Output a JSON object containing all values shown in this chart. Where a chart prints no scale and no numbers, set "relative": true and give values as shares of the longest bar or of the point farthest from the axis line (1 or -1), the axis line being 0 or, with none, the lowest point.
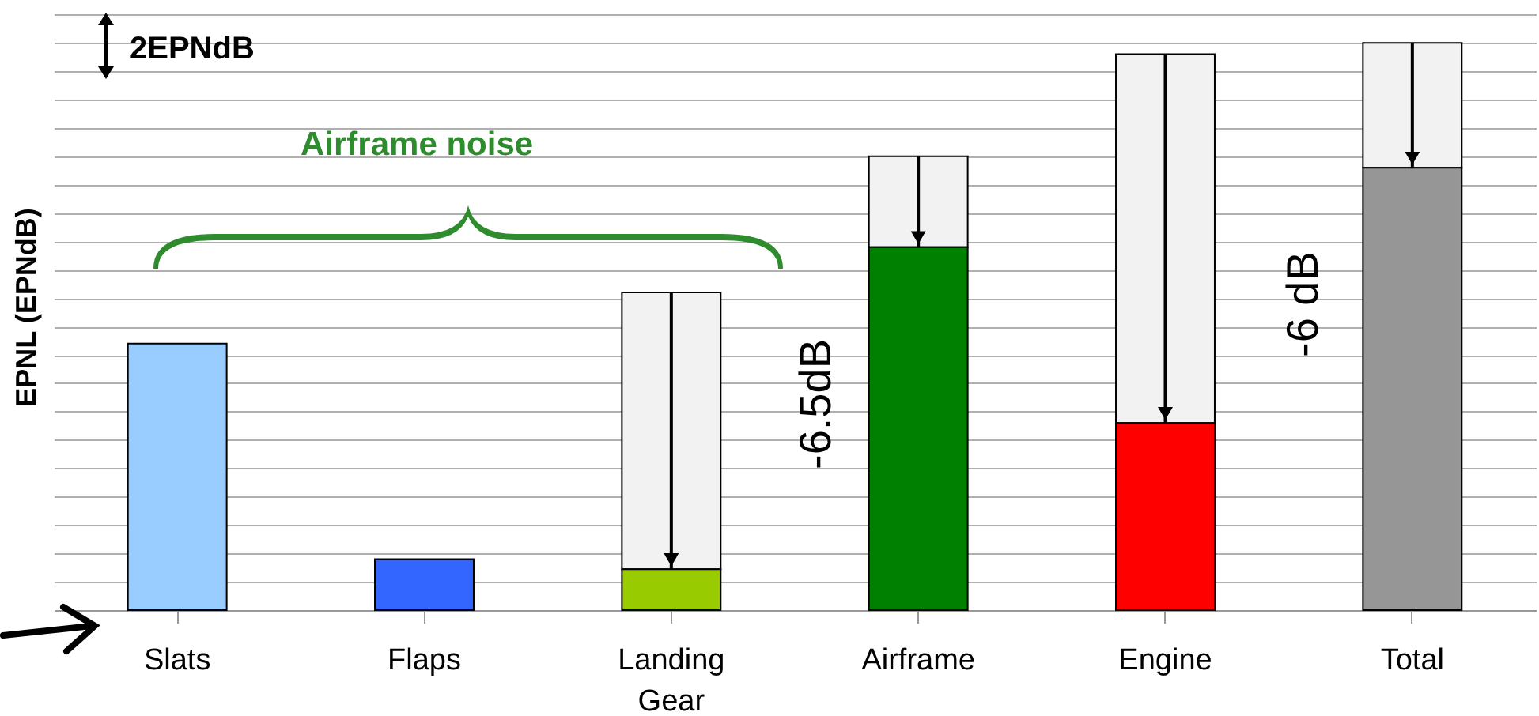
{
  "chart_data": {
    "type": "bar",
    "relative": true,
    "ylabel": "EPNL (EPNdB)",
    "grid": "y",
    "categories": [
      "Slats",
      "Flaps",
      "Landing Gear",
      "Airframe",
      "Engine",
      "Total"
    ],
    "series": [
      {
        "values": [
          0.47,
          0.09,
          0.072,
          0.64,
          0.33,
          0.78
        ],
        "colors": [
          "#99ccff",
          "#3366ff",
          "#99cc00",
          "#008000",
          "#ff0000",
          "#969696"
        ]
      },
      {
        "values": [
          null,
          null,
          0.488,
          0.16,
          0.65,
          0.22
        ],
        "colors": [
          null,
          null,
          "#f2f2f2",
          "#f2f2f2",
          "#f2f2f2",
          "#f2f2f2"
        ]
      }
    ],
    "stacked": true,
    "annotations": [
      "2EPNdB",
      "Airframe noise",
      "-6.5dB",
      "-6 dB"
    ]
  }
}
